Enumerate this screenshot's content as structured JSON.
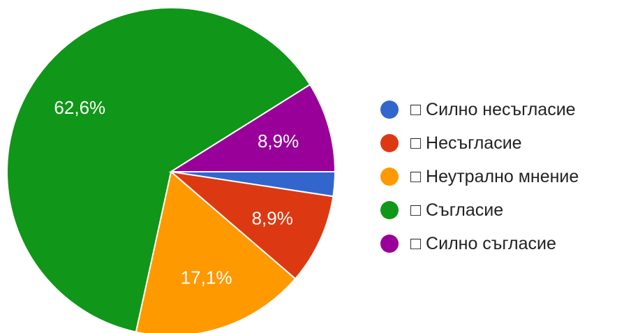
{
  "chart_data": {
    "type": "pie",
    "title": "",
    "slices": [
      {
        "label": "□ Силно несъгласие",
        "value": 2.4,
        "display": "",
        "color": "#3366cc"
      },
      {
        "label": "□ Несъгласие",
        "value": 8.9,
        "display": "8,9%",
        "color": "#dc3912"
      },
      {
        "label": "□ Неутрално мнение",
        "value": 17.1,
        "display": "17,1%",
        "color": "#ff9900"
      },
      {
        "label": "□ Съгласие",
        "value": 62.6,
        "display": "62,6%",
        "color": "#109618"
      },
      {
        "label": "□ Силно съгласие",
        "value": 8.9,
        "display": "8,9%",
        "color": "#990099"
      }
    ],
    "legend_position": "right",
    "start_angle_deg": 0,
    "direction": "clockwise"
  }
}
